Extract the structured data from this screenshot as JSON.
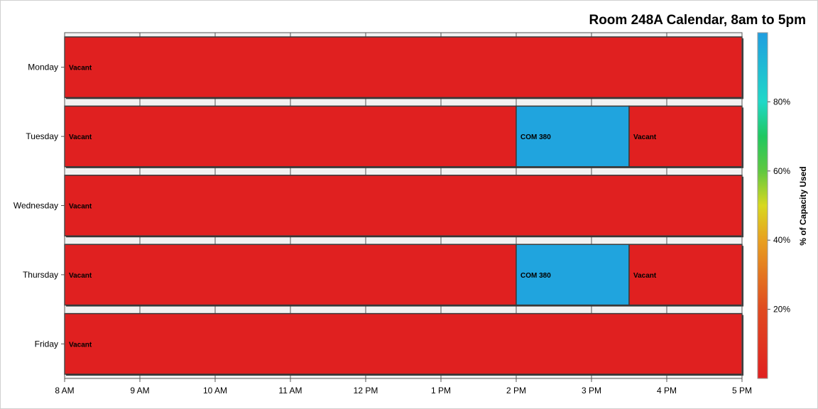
{
  "chart_data": {
    "type": "bar",
    "orientation": "horizontal-timeline",
    "title": "Room 248A Calendar, 8am to 5pm",
    "xlabel": "",
    "ylabel": "",
    "x_range": [
      8,
      17
    ],
    "x_ticks": [
      {
        "value": 8,
        "label": "8 AM"
      },
      {
        "value": 9,
        "label": "9 AM"
      },
      {
        "value": 10,
        "label": "10 AM"
      },
      {
        "value": 11,
        "label": "11 AM"
      },
      {
        "value": 12,
        "label": "12 PM"
      },
      {
        "value": 13,
        "label": "1 PM"
      },
      {
        "value": 14,
        "label": "2 PM"
      },
      {
        "value": 15,
        "label": "3 PM"
      },
      {
        "value": 16,
        "label": "4 PM"
      },
      {
        "value": 17,
        "label": "5 PM"
      }
    ],
    "categories": [
      "Monday",
      "Tuesday",
      "Wednesday",
      "Thursday",
      "Friday"
    ],
    "events": [
      {
        "day": "Monday",
        "start": 8,
        "end": 17,
        "label": "Vacant",
        "capacity": 0
      },
      {
        "day": "Tuesday",
        "start": 8,
        "end": 14,
        "label": "Vacant",
        "capacity": 0
      },
      {
        "day": "Tuesday",
        "start": 14,
        "end": 15.5,
        "label": "COM 380",
        "capacity": 98
      },
      {
        "day": "Tuesday",
        "start": 15.5,
        "end": 17,
        "label": "Vacant",
        "capacity": 0
      },
      {
        "day": "Wednesday",
        "start": 8,
        "end": 17,
        "label": "Vacant",
        "capacity": 0
      },
      {
        "day": "Thursday",
        "start": 8,
        "end": 14,
        "label": "Vacant",
        "capacity": 0
      },
      {
        "day": "Thursday",
        "start": 14,
        "end": 15.5,
        "label": "COM 380",
        "capacity": 98
      },
      {
        "day": "Thursday",
        "start": 15.5,
        "end": 17,
        "label": "Vacant",
        "capacity": 0
      },
      {
        "day": "Friday",
        "start": 8,
        "end": 17,
        "label": "Vacant",
        "capacity": 0
      }
    ],
    "colorbar": {
      "title": "% of Capacity Used",
      "range": [
        0,
        100
      ],
      "ticks": [
        {
          "value": 20,
          "label": "20%"
        },
        {
          "value": 40,
          "label": "40%"
        },
        {
          "value": 60,
          "label": "60%"
        },
        {
          "value": 80,
          "label": "80%"
        }
      ],
      "stops": [
        {
          "value": 0,
          "color": "#e02020"
        },
        {
          "value": 20,
          "color": "#e04a20"
        },
        {
          "value": 40,
          "color": "#e8a020"
        },
        {
          "value": 50,
          "color": "#d8d820"
        },
        {
          "value": 60,
          "color": "#60c840"
        },
        {
          "value": 70,
          "color": "#20c860"
        },
        {
          "value": 80,
          "color": "#20d8c8"
        },
        {
          "value": 100,
          "color": "#209ee0"
        }
      ]
    },
    "colors": {
      "vacant": "#e02020",
      "occupied": "#209ee0",
      "band": "#f2f2f2"
    },
    "grid": true,
    "legend": "right"
  }
}
